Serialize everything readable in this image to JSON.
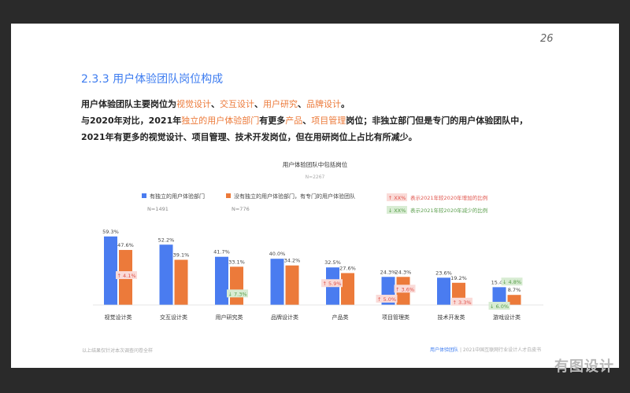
{
  "page_number": "26",
  "section_title": "2.3.3 用户体验团队岗位构成",
  "paragraph": {
    "line1": {
      "p1": "用户体验团队主要岗位为",
      "h1": "视觉设计",
      "p2": "、",
      "h2": "交互设计",
      "p3": "、",
      "h3": "用户研究",
      "p4": "、",
      "h4": "品牌设计",
      "p5": "。"
    },
    "line2": {
      "p1": "与2020年对比，2021年",
      "h1": "独立的用户体验部门",
      "p2": "有更多",
      "h2": "产品",
      "p3": "、",
      "h3": "项目管理",
      "p4": "岗位；非独立部门但是专门的用户体验团队中，"
    },
    "line3": "2021年有更多的视觉设计、项目管理、技术开发岗位，但在用研岗位上占比有所减少。"
  },
  "colors": {
    "blue": "#4a7cf0",
    "orange": "#ec7a3a",
    "up_bg": "#fadbd8",
    "up_text": "#e0524a",
    "down_bg": "#d8ecd3",
    "down_text": "#5a9e4c"
  },
  "chart_data": {
    "type": "bar",
    "title": "用户体验团队中包括岗位",
    "subtitle": "N=2267",
    "categories": [
      "视觉设计类",
      "交互设计类",
      "用户研究类",
      "品牌设计类",
      "产品类",
      "项目管理类",
      "技术开发类",
      "游戏设计类"
    ],
    "series": [
      {
        "name": "有独立的用户体验部门",
        "n": "N=1491",
        "values": [
          59.3,
          52.2,
          41.7,
          40.0,
          32.5,
          24.3,
          23.6,
          15.4
        ],
        "labels": [
          "59.3%",
          "52.2%",
          "41.7%",
          "40.0%",
          "32.5%",
          "24.3%",
          "23.6%",
          "15.4%"
        ]
      },
      {
        "name": "没有独立的用户体验部门，有专门的用户体验团队",
        "n": "N=776",
        "values": [
          47.6,
          39.1,
          33.1,
          34.2,
          27.6,
          24.3,
          19.2,
          8.7
        ],
        "labels": [
          "47.6%",
          "39.1%",
          "33.1%",
          "34.2%",
          "27.6%",
          "24.3%",
          "19.2%",
          "8.7%"
        ]
      }
    ],
    "ylim": [
      0,
      65
    ],
    "legend_notes": {
      "up_tag": "↑ XX%",
      "up_text": "表示2021年较2020年增加的比例",
      "down_tag": "↓ XX%",
      "down_text": "表示2021年较2020年减少的比例"
    },
    "changes": [
      {
        "category": 0,
        "series": 1,
        "dir": "up",
        "text": "↑ 4.1%"
      },
      {
        "category": 2,
        "series": 1,
        "dir": "down",
        "text": "↓ 7.3%"
      },
      {
        "category": 4,
        "series": 0,
        "dir": "up",
        "text": "↑ 5.9%"
      },
      {
        "category": 5,
        "series": 0,
        "dir": "up",
        "text": "↑ 5.0%"
      },
      {
        "category": 5,
        "series": 1,
        "dir": "up",
        "text": "↑ 3.6%"
      },
      {
        "category": 6,
        "series": 1,
        "dir": "up",
        "text": "↑ 3.3%"
      },
      {
        "category": 7,
        "series": 1,
        "dir": "down",
        "text": "↓ 4.8%"
      },
      {
        "category": 7,
        "series": 0,
        "dir": "down",
        "text": "↓ 6.0%"
      }
    ]
  },
  "footer": {
    "note": "以上结果仅针对本次调查问卷全样",
    "brand": "用户体验团队",
    "separator": "|",
    "report": "2021中国互联网行业设计人才白皮书"
  },
  "watermark": "有图设计"
}
